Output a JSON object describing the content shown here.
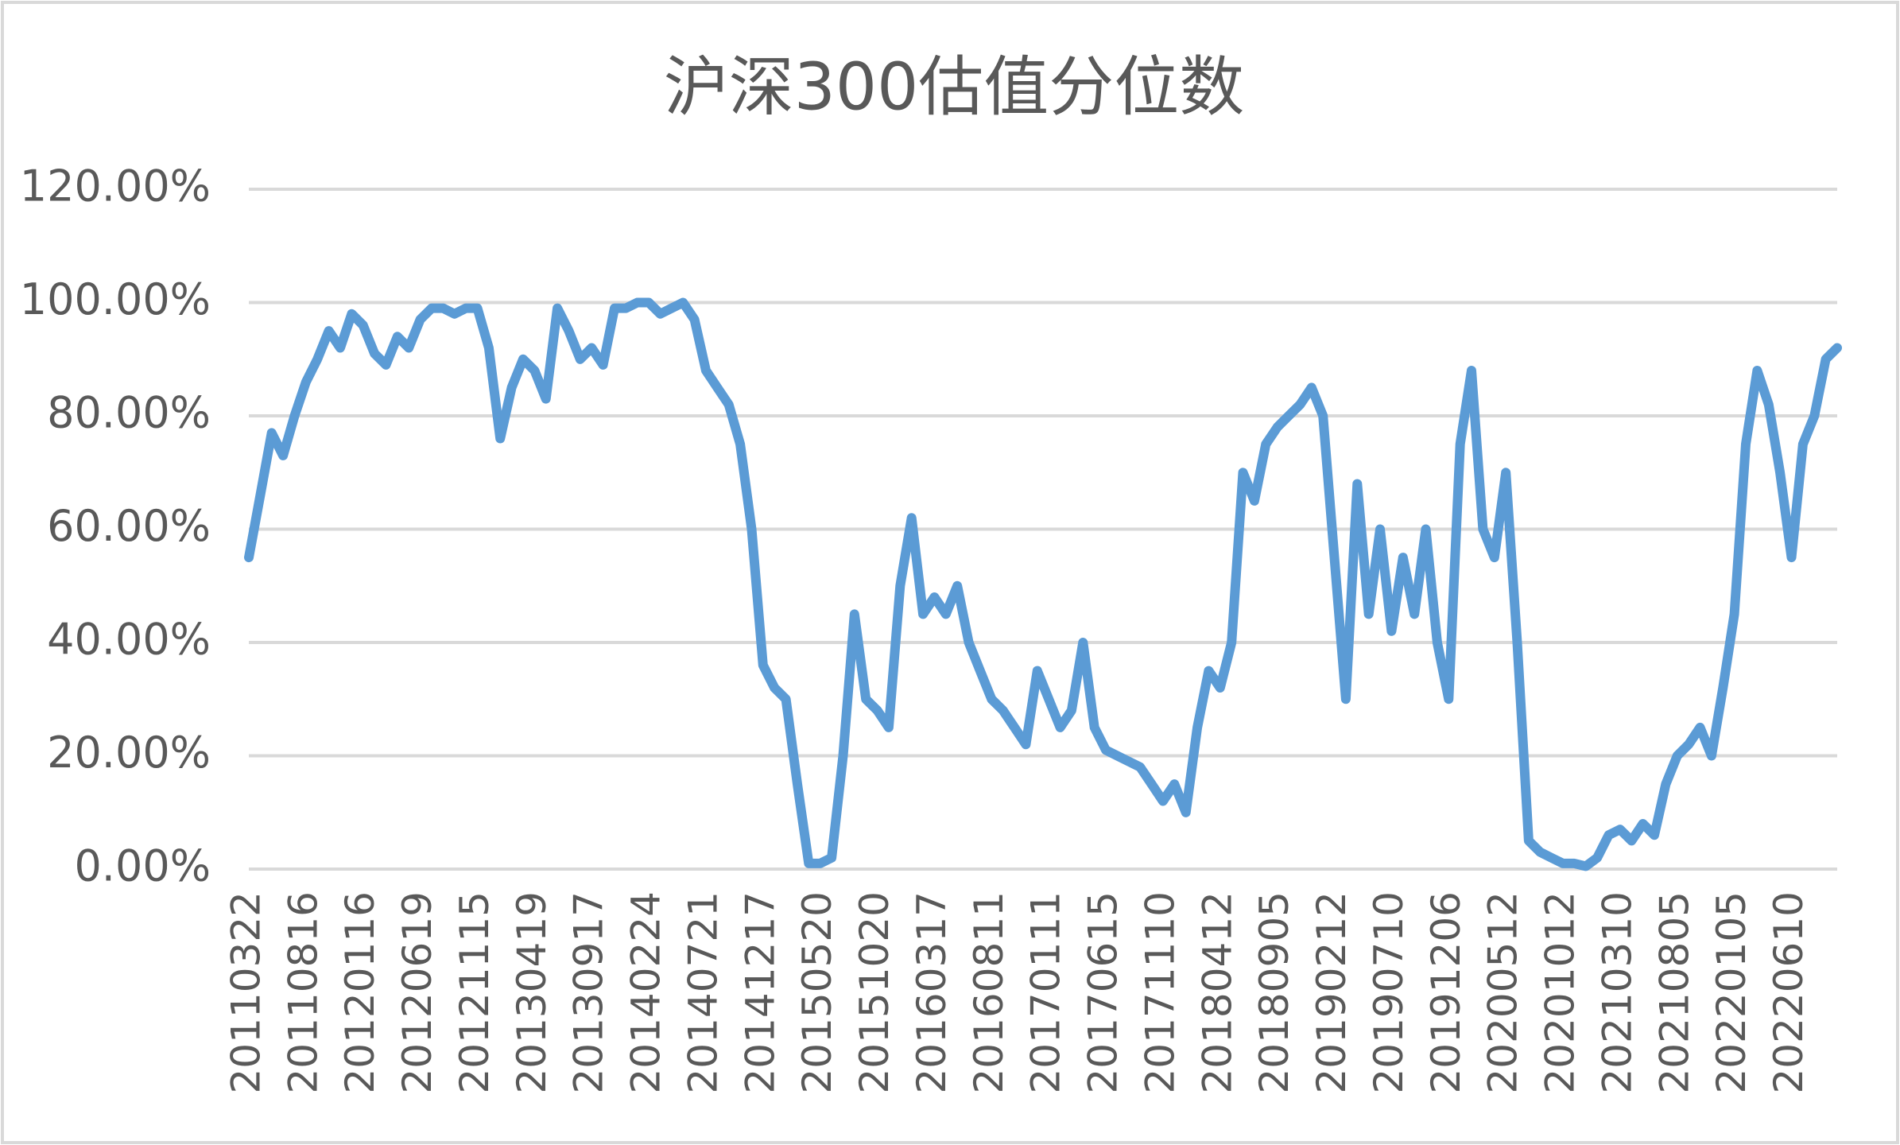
{
  "chart_data": {
    "type": "line",
    "title": "沪深300估值分位数",
    "categories": [
      "20110322",
      null,
      null,
      null,
      null,
      "20110816",
      null,
      null,
      null,
      null,
      "20120116",
      null,
      null,
      null,
      null,
      "20120619",
      null,
      null,
      null,
      null,
      "20121115",
      null,
      null,
      null,
      null,
      "20130419",
      null,
      null,
      null,
      null,
      "20130917",
      null,
      null,
      null,
      null,
      "20140224",
      null,
      null,
      null,
      null,
      "20140721",
      null,
      null,
      null,
      null,
      "20141217",
      null,
      null,
      null,
      null,
      "20150520",
      null,
      null,
      null,
      null,
      "20151020",
      null,
      null,
      null,
      null,
      "20160317",
      null,
      null,
      null,
      null,
      "20160811",
      null,
      null,
      null,
      null,
      "20170111",
      null,
      null,
      null,
      null,
      "20170615",
      null,
      null,
      null,
      null,
      "20171110",
      null,
      null,
      null,
      null,
      "20180412",
      null,
      null,
      null,
      null,
      "20180905",
      null,
      null,
      null,
      null,
      "20190212",
      null,
      null,
      null,
      null,
      "20190710",
      null,
      null,
      null,
      null,
      "20191206",
      null,
      null,
      null,
      null,
      "20200512",
      null,
      null,
      null,
      null,
      "20201012",
      null,
      null,
      null,
      null,
      "20210310",
      null,
      null,
      null,
      null,
      "20210805",
      null,
      null,
      null,
      null,
      "20220105",
      null,
      null,
      null,
      null,
      "20220610",
      null,
      null,
      null,
      null
    ],
    "values": [
      55,
      66,
      77,
      73,
      80,
      86,
      90,
      95,
      92,
      98,
      96,
      91,
      89,
      94,
      92,
      97,
      99,
      99,
      98,
      99,
      99,
      92,
      76,
      85,
      90,
      88,
      83,
      99,
      95,
      90,
      92,
      89,
      99,
      99,
      100,
      100,
      98,
      99,
      100,
      97,
      88,
      85,
      82,
      75,
      60,
      36,
      32,
      30,
      15,
      1,
      1,
      2,
      20,
      45,
      30,
      28,
      25,
      50,
      62,
      45,
      48,
      45,
      50,
      40,
      35,
      30,
      28,
      25,
      22,
      35,
      30,
      25,
      28,
      40,
      25,
      21,
      20,
      19,
      18,
      15,
      12,
      15,
      10,
      25,
      35,
      32,
      40,
      70,
      65,
      75,
      78,
      80,
      82,
      85,
      80,
      55,
      30,
      68,
      45,
      60,
      42,
      55,
      45,
      60,
      40,
      30,
      75,
      88,
      60,
      55,
      70,
      40,
      5,
      3,
      2,
      1,
      1,
      0.5,
      2,
      6,
      7,
      5,
      8,
      6,
      15,
      20,
      22,
      25,
      20,
      32,
      45,
      75,
      88,
      82,
      70,
      55,
      75,
      80,
      90,
      92
    ],
    "color": "#5b9bd5",
    "ylim": [
      0,
      120
    ],
    "yticks": [
      {
        "value": 0,
        "label": "0.00%"
      },
      {
        "value": 20,
        "label": "20.00%"
      },
      {
        "value": 40,
        "label": "40.00%"
      },
      {
        "value": 60,
        "label": "60.00%"
      },
      {
        "value": 80,
        "label": "80.00%"
      },
      {
        "value": 100,
        "label": "100.00%"
      },
      {
        "value": 120,
        "label": "120.00%"
      }
    ],
    "grid": true
  }
}
